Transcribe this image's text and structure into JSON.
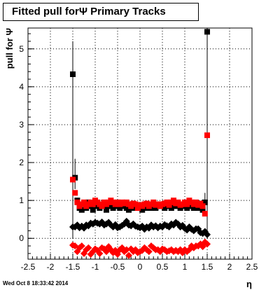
{
  "title": "Fitted pull forΨ   Primary Tracks",
  "footer": "Wed Oct  8 18:33:42 2014",
  "chart_data": {
    "type": "scatter",
    "title": "Fitted pull forΨ   Primary Tracks",
    "xlabel": "η",
    "ylabel": "pull for Ψ",
    "xlim": [
      -2.5,
      2.5
    ],
    "ylim": [
      -0.55,
      5.55
    ],
    "x_ticks": [
      "-2.5",
      "-2",
      "-1.5",
      "-1",
      "-0.5",
      "0",
      "0.5",
      "1",
      "1.5",
      "2",
      "2.5"
    ],
    "y_ticks": [
      "0",
      "1",
      "2",
      "3",
      "4",
      "5"
    ],
    "grid": true,
    "x": [
      -1.5,
      -1.45,
      -1.4,
      -1.35,
      -1.3,
      -1.25,
      -1.2,
      -1.15,
      -1.1,
      -1.05,
      -1.0,
      -0.95,
      -0.9,
      -0.85,
      -0.8,
      -0.75,
      -0.7,
      -0.65,
      -0.6,
      -0.55,
      -0.5,
      -0.45,
      -0.4,
      -0.35,
      -0.3,
      -0.25,
      -0.2,
      -0.15,
      -0.1,
      -0.05,
      0.0,
      0.05,
      0.1,
      0.15,
      0.2,
      0.25,
      0.3,
      0.35,
      0.4,
      0.45,
      0.5,
      0.55,
      0.6,
      0.65,
      0.7,
      0.75,
      0.8,
      0.85,
      0.9,
      0.95,
      1.0,
      1.05,
      1.1,
      1.15,
      1.2,
      1.25,
      1.3,
      1.35,
      1.4,
      1.45,
      1.5
    ],
    "series": [
      {
        "color": "#000000",
        "marker": "square",
        "values": [
          4.33,
          1.6,
          1.0,
          0.8,
          0.75,
          0.9,
          0.8,
          0.95,
          0.85,
          0.75,
          0.9,
          0.85,
          0.8,
          0.9,
          0.85,
          0.75,
          0.85,
          0.9,
          0.8,
          0.9,
          0.85,
          0.8,
          0.9,
          0.85,
          0.8,
          0.75,
          0.9,
          0.8,
          0.85,
          0.8,
          0.8,
          0.75,
          0.85,
          0.8,
          0.85,
          0.8,
          0.9,
          0.8,
          0.85,
          0.9,
          0.85,
          0.8,
          0.85,
          0.9,
          0.8,
          0.85,
          0.9,
          0.85,
          0.8,
          0.9,
          0.85,
          0.8,
          0.9,
          0.85,
          0.8,
          0.85,
          0.8,
          0.85,
          0.75,
          0.95,
          5.45
        ]
      },
      {
        "color": "#ff0000",
        "marker": "square",
        "values": [
          1.55,
          1.2,
          0.95,
          0.85,
          0.9,
          0.95,
          0.85,
          0.9,
          0.95,
          0.9,
          1.0,
          0.95,
          0.9,
          0.85,
          0.95,
          0.9,
          0.95,
          1.0,
          0.95,
          0.9,
          0.95,
          0.9,
          0.95,
          0.92,
          0.95,
          0.9,
          0.85,
          0.92,
          0.9,
          0.8,
          0.88,
          0.85,
          0.9,
          0.92,
          0.85,
          0.9,
          0.95,
          0.88,
          0.9,
          0.85,
          0.9,
          0.92,
          0.95,
          0.88,
          0.95,
          1.0,
          0.92,
          0.95,
          0.88,
          0.9,
          0.95,
          0.9,
          1.0,
          0.95,
          0.9,
          0.95,
          0.88,
          0.92,
          0.85,
          0.65,
          2.72
        ]
      },
      {
        "color": "#000000",
        "marker": "diamond",
        "values": [
          0.3,
          0.3,
          0.35,
          0.28,
          0.32,
          0.27,
          0.35,
          0.33,
          0.4,
          0.38,
          0.42,
          0.4,
          0.38,
          0.43,
          0.35,
          0.38,
          0.42,
          0.35,
          0.3,
          0.36,
          0.28,
          0.3,
          0.34,
          0.38,
          0.45,
          0.35,
          0.33,
          0.38,
          0.32,
          0.3,
          0.28,
          0.32,
          0.24,
          0.3,
          0.27,
          0.35,
          0.3,
          0.33,
          0.28,
          0.32,
          0.3,
          0.36,
          0.33,
          0.3,
          0.38,
          0.35,
          0.42,
          0.38,
          0.3,
          0.34,
          0.26,
          0.22,
          0.3,
          0.24,
          0.2,
          0.25,
          0.25,
          0.15,
          0.13,
          0.18,
          0.1
        ]
      },
      {
        "color": "#ff0000",
        "marker": "diamond",
        "values": [
          -0.18,
          -0.2,
          -0.35,
          -0.25,
          -0.2,
          -0.4,
          -0.3,
          -0.25,
          -0.42,
          -0.35,
          -0.28,
          -0.32,
          -0.4,
          -0.25,
          -0.28,
          -0.35,
          -0.22,
          -0.3,
          -0.38,
          -0.32,
          -0.42,
          -0.3,
          -0.25,
          -0.35,
          -0.3,
          -0.45,
          -0.28,
          -0.35,
          -0.3,
          -0.38,
          -0.35,
          -0.32,
          -0.25,
          -0.3,
          -0.35,
          -0.2,
          -0.25,
          -0.3,
          -0.3,
          -0.35,
          -0.28,
          -0.3,
          -0.35,
          -0.33,
          -0.3,
          -0.35,
          -0.32,
          -0.35,
          -0.3,
          -0.38,
          -0.3,
          -0.35,
          -0.3,
          -0.2,
          -0.25,
          -0.2,
          -0.2,
          -0.15,
          -0.22,
          -0.1,
          -0.15
        ]
      }
    ],
    "error_bars": [
      {
        "x": -1.5,
        "low": 0.0,
        "high": 5.2
      },
      {
        "x": -1.45,
        "low": 1.3,
        "high": 2.1
      },
      {
        "x": 1.45,
        "low": 0.6,
        "high": 1.2
      },
      {
        "x": 1.5,
        "low": 0.0,
        "high": 5.55
      }
    ]
  }
}
